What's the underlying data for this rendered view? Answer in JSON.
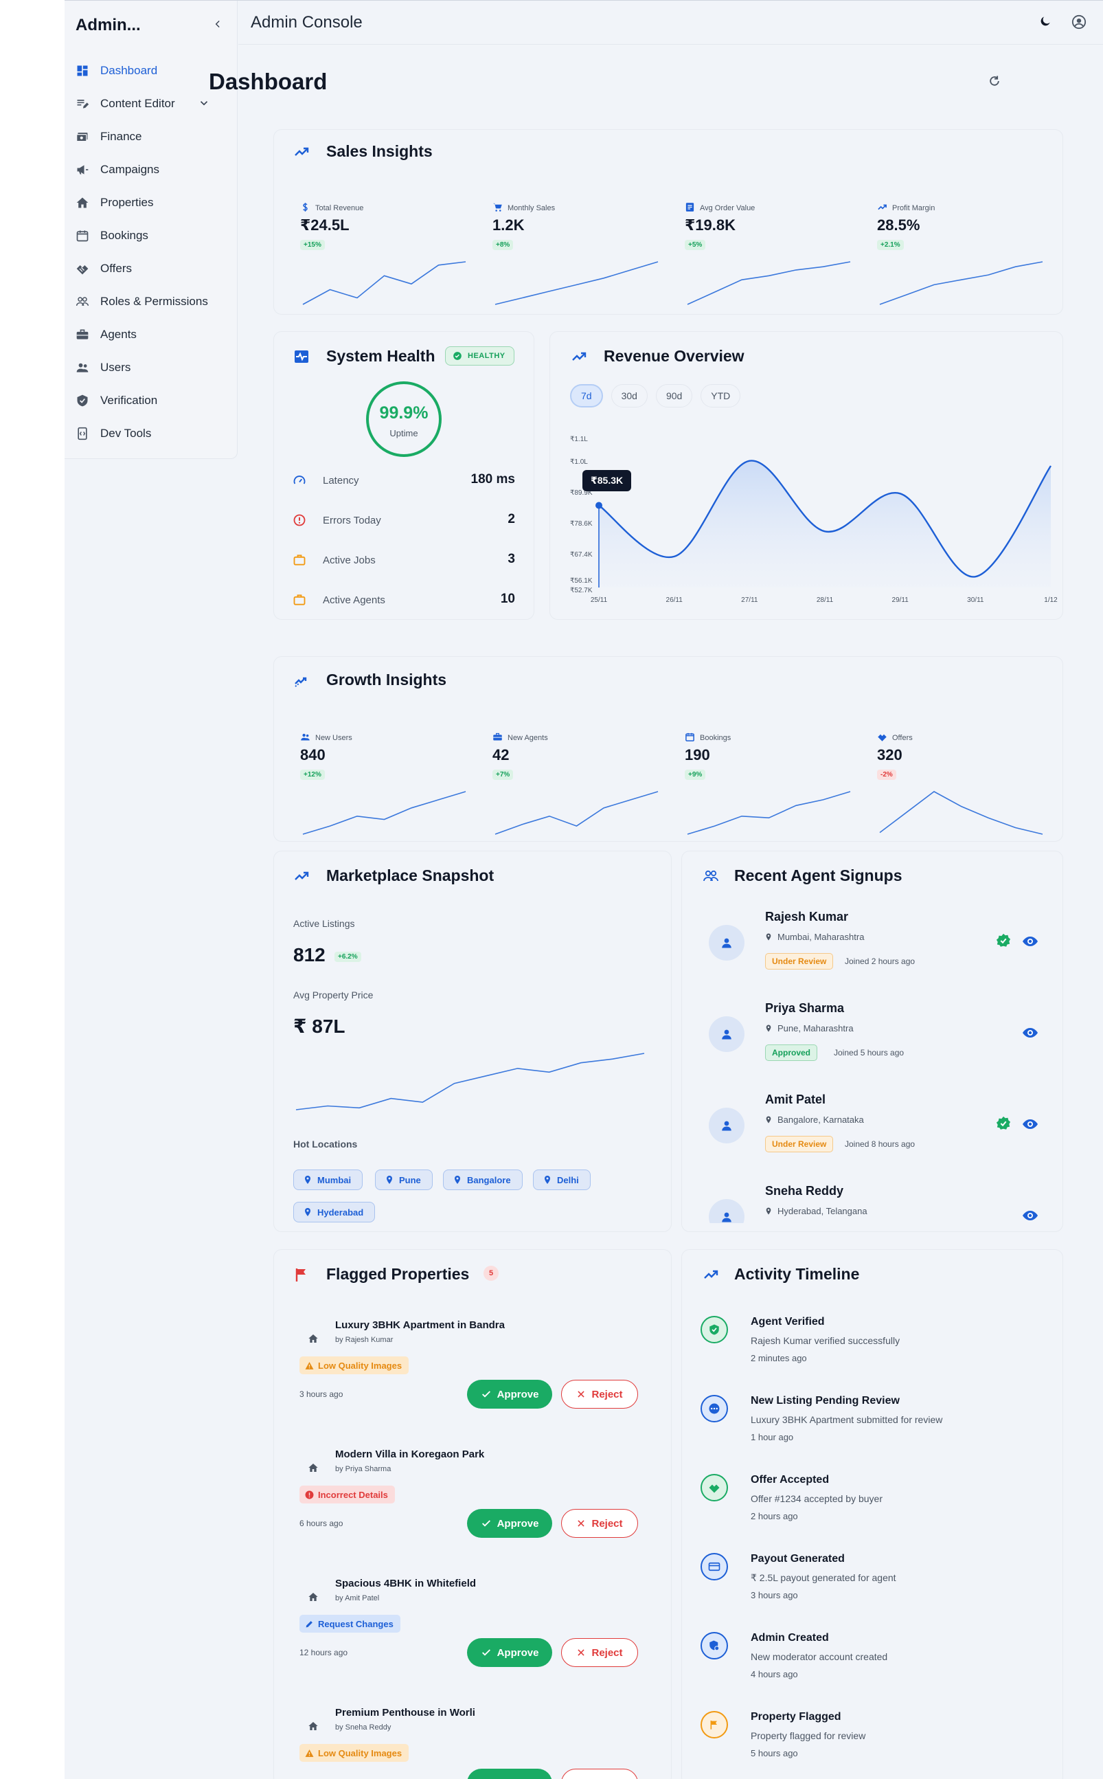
{
  "brand": "Admin...",
  "header": {
    "title": "Admin Console"
  },
  "page_title": "Dashboard",
  "sidebar": {
    "items": [
      {
        "label": "Dashboard",
        "icon": "dashboard-icon",
        "active": true
      },
      {
        "label": "Content Editor",
        "icon": "edit-note-icon",
        "expandable": true
      },
      {
        "label": "Finance",
        "icon": "finance-icon"
      },
      {
        "label": "Campaigns",
        "icon": "megaphone-icon"
      },
      {
        "label": "Properties",
        "icon": "home-icon"
      },
      {
        "label": "Bookings",
        "icon": "calendar-icon"
      },
      {
        "label": "Offers",
        "icon": "handshake-icon"
      },
      {
        "label": "Roles & Permissions",
        "icon": "people-outline-icon"
      },
      {
        "label": "Agents",
        "icon": "briefcase-icon"
      },
      {
        "label": "Users",
        "icon": "users-icon"
      },
      {
        "label": "Verification",
        "icon": "shield-check-icon"
      },
      {
        "label": "Dev Tools",
        "icon": "dev-tools-icon"
      }
    ]
  },
  "sales": {
    "title": "Sales Insights",
    "kpis": [
      {
        "label": "Total Revenue",
        "value": "₹24.5L",
        "change": "+15%",
        "trend": [
          20,
          38,
          28,
          55,
          45,
          68,
          72
        ]
      },
      {
        "label": "Monthly Sales",
        "value": "1.2K",
        "change": "+8%",
        "trend": [
          20,
          28,
          36,
          44,
          52,
          62,
          72
        ]
      },
      {
        "label": "Avg Order Value",
        "value": "₹19.8K",
        "change": "+5%",
        "trend": [
          20,
          35,
          50,
          55,
          62,
          66,
          72
        ]
      },
      {
        "label": "Profit Margin",
        "value": "28.5%",
        "change": "+2.1%",
        "trend": [
          20,
          32,
          44,
          50,
          56,
          66,
          72
        ]
      }
    ]
  },
  "health": {
    "title": "System Health",
    "status": "HEALTHY",
    "uptime": "99.9%",
    "uptime_label": "Uptime",
    "metrics": [
      {
        "label": "Latency",
        "value": "180 ms",
        "icon": "speedometer-icon"
      },
      {
        "label": "Errors Today",
        "value": "2",
        "icon": "error-icon"
      },
      {
        "label": "Active Jobs",
        "value": "3",
        "icon": "briefcase-icon"
      },
      {
        "label": "Active Agents",
        "value": "10",
        "icon": "briefcase-icon"
      }
    ]
  },
  "revenue": {
    "title": "Revenue Overview",
    "ranges": [
      "7d",
      "30d",
      "90d",
      "YTD"
    ],
    "active_range": "7d",
    "tooltip": "₹85.3K"
  },
  "chart_data": {
    "type": "area",
    "title": "Revenue Overview",
    "x": [
      "25/11",
      "26/11",
      "27/11",
      "28/11",
      "29/11",
      "30/11",
      "1/12"
    ],
    "y_ticks": [
      "₹1.1L",
      "₹1.0L",
      "₹89.9K",
      "₹78.6K",
      "₹67.4K",
      "₹56.1K",
      "₹52.7K"
    ],
    "series": [
      {
        "values": [
          85300,
          65000,
          103000,
          75000,
          90000,
          57000,
          101000
        ]
      }
    ],
    "grid": false
  },
  "growth": {
    "title": "Growth Insights",
    "kpis": [
      {
        "label": "New Users",
        "value": "840",
        "change": "+12%",
        "positive": true,
        "trend": [
          20,
          30,
          42,
          38,
          52,
          62,
          72
        ]
      },
      {
        "label": "New Agents",
        "value": "42",
        "change": "+7%",
        "positive": true,
        "trend": [
          20,
          32,
          42,
          30,
          52,
          62,
          72
        ]
      },
      {
        "label": "Bookings",
        "value": "190",
        "change": "+9%",
        "positive": true,
        "trend": [
          20,
          30,
          42,
          40,
          55,
          62,
          72
        ]
      },
      {
        "label": "Offers",
        "value": "320",
        "change": "-2%",
        "positive": false,
        "trend": [
          20,
          45,
          70,
          52,
          38,
          26,
          18
        ]
      }
    ]
  },
  "marketplace": {
    "title": "Marketplace Snapshot",
    "active_listings_label": "Active Listings",
    "active_listings": "812",
    "active_listings_change": "+6.2%",
    "avg_price_label": "Avg Property Price",
    "avg_price": "₹ 87L",
    "trend": [
      20,
      22,
      21,
      26,
      24,
      34,
      38,
      42,
      40,
      45,
      47,
      50
    ],
    "hot_locations_label": "Hot Locations",
    "locations": [
      "Mumbai",
      "Pune",
      "Bangalore",
      "Delhi",
      "Hyderabad"
    ]
  },
  "signups": {
    "title": "Recent Agent Signups",
    "agents": [
      {
        "name": "Rajesh Kumar",
        "location": "Mumbai, Maharashtra",
        "status": "Under Review",
        "joined": "Joined 2 hours ago",
        "verified": true
      },
      {
        "name": "Priya Sharma",
        "location": "Pune, Maharashtra",
        "status": "Approved",
        "joined": "Joined 5 hours ago",
        "verified": false
      },
      {
        "name": "Amit Patel",
        "location": "Bangalore, Karnataka",
        "status": "Under Review",
        "joined": "Joined 8 hours ago",
        "verified": true
      },
      {
        "name": "Sneha Reddy",
        "location": "Hyderabad, Telangana",
        "status": "",
        "joined": "",
        "verified": false
      }
    ]
  },
  "flagged": {
    "title": "Flagged Properties",
    "count": "5",
    "approve_label": "Approve",
    "reject_label": "Reject",
    "items": [
      {
        "title": "Luxury 3BHK Apartment in Bandra",
        "by": "by Rajesh Kumar",
        "issue": "Low Quality Images",
        "issue_type": "yellow",
        "time": "3 hours ago"
      },
      {
        "title": "Modern Villa in Koregaon Park",
        "by": "by Priya Sharma",
        "issue": "Incorrect Details",
        "issue_type": "red",
        "time": "6 hours ago"
      },
      {
        "title": "Spacious 4BHK in Whitefield",
        "by": "by Amit Patel",
        "issue": "Request Changes",
        "issue_type": "blue",
        "time": "12 hours ago"
      },
      {
        "title": "Premium Penthouse in Worli",
        "by": "by Sneha Reddy",
        "issue": "Low Quality Images",
        "issue_type": "yellow",
        "time": ""
      }
    ]
  },
  "timeline": {
    "title": "Activity Timeline",
    "items": [
      {
        "title": "Agent Verified",
        "desc": "Rajesh Kumar verified successfully",
        "time": "2 minutes ago",
        "icon": "verified-icon",
        "color": "#1aab64"
      },
      {
        "title": "New Listing Pending Review",
        "desc": "Luxury 3BHK Apartment submitted for review",
        "time": "1 hour ago",
        "icon": "pending-icon",
        "color": "#1d5fd6"
      },
      {
        "title": "Offer Accepted",
        "desc": "Offer #1234 accepted by buyer",
        "time": "2 hours ago",
        "icon": "handshake-icon",
        "color": "#1aab64"
      },
      {
        "title": "Payout Generated",
        "desc": "₹ 2.5L payout generated for agent",
        "time": "3 hours ago",
        "icon": "card-icon",
        "color": "#1d5fd6"
      },
      {
        "title": "Admin Created",
        "desc": "New moderator account created",
        "time": "4 hours ago",
        "icon": "admin-icon",
        "color": "#1d5fd6"
      },
      {
        "title": "Property Flagged",
        "desc": "Property flagged for review",
        "time": "5 hours ago",
        "icon": "flag-icon",
        "color": "#f29a12"
      }
    ]
  },
  "colors": {
    "accent": "#1d5fd6",
    "success": "#1aab64",
    "danger": "#e03b3b",
    "warning": "#e58a12"
  }
}
